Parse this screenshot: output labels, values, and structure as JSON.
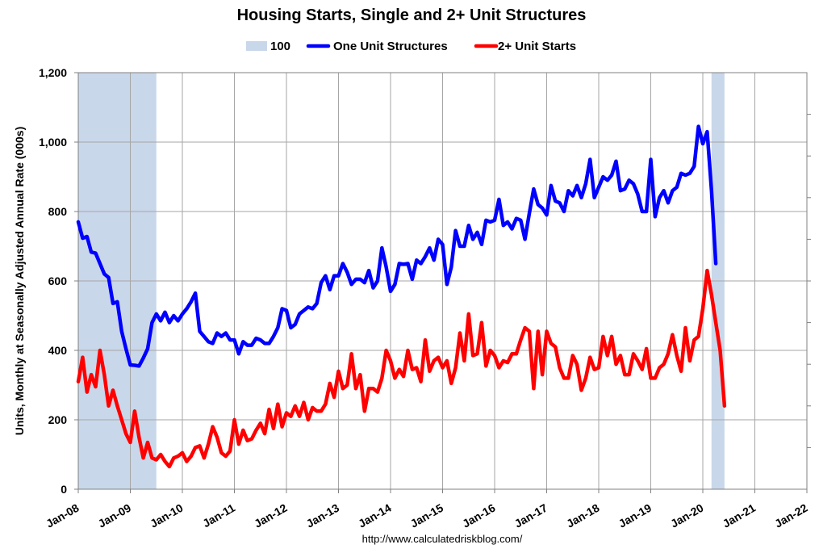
{
  "chart_data": {
    "type": "line",
    "title": "Housing Starts, Single and 2+ Unit Structures",
    "ylabel": "Units, Monthly at Seasonally Adjusted Annual Rate (000s)",
    "xlabel": "",
    "ylim": [
      0,
      1200
    ],
    "yticks": [
      {
        "value": 0,
        "label": "0"
      },
      {
        "value": 200,
        "label": "200"
      },
      {
        "value": 400,
        "label": "400"
      },
      {
        "value": 600,
        "label": "600"
      },
      {
        "value": 800,
        "label": "800"
      },
      {
        "value": 1000,
        "label": "1,000"
      },
      {
        "value": 1200,
        "label": "1,200"
      }
    ],
    "xlim": [
      "2008-01",
      "2022-01"
    ],
    "xticks": [
      "Jan-08",
      "Jan-09",
      "Jan-10",
      "Jan-11",
      "Jan-12",
      "Jan-13",
      "Jan-14",
      "Jan-15",
      "Jan-16",
      "Jan-17",
      "Jan-18",
      "Jan-19",
      "Jan-20",
      "Jan-21",
      "Jan-22"
    ],
    "grid": true,
    "legend_position": "top",
    "legend": [
      {
        "label": "100",
        "kind": "band",
        "color": "#c9d7ea"
      },
      {
        "label": "One Unit Structures",
        "kind": "line",
        "color": "#0000ff"
      },
      {
        "label": "2+ Unit Starts",
        "kind": "line",
        "color": "#ff0000"
      }
    ],
    "shaded_periods": [
      {
        "start": "2008-01",
        "end": "2009-06",
        "label": "100"
      },
      {
        "start": "2020-03",
        "end": "2020-05",
        "label": "100"
      }
    ],
    "series": [
      {
        "name": "One Unit Structures",
        "color": "#0000ff",
        "start": "2008-01",
        "values": [
          770,
          723,
          728,
          683,
          680,
          650,
          620,
          610,
          535,
          540,
          455,
          405,
          358,
          357,
          355,
          378,
          405,
          480,
          505,
          485,
          510,
          480,
          500,
          485,
          505,
          520,
          540,
          565,
          455,
          440,
          425,
          420,
          450,
          440,
          450,
          430,
          430,
          390,
          425,
          415,
          415,
          435,
          430,
          420,
          420,
          440,
          465,
          520,
          515,
          465,
          475,
          505,
          515,
          525,
          520,
          535,
          595,
          615,
          575,
          615,
          615,
          650,
          625,
          590,
          605,
          605,
          595,
          630,
          580,
          600,
          695,
          640,
          570,
          590,
          650,
          648,
          650,
          605,
          660,
          650,
          670,
          695,
          660,
          720,
          705,
          590,
          640,
          745,
          700,
          700,
          760,
          720,
          740,
          705,
          775,
          770,
          775,
          835,
          760,
          770,
          750,
          780,
          775,
          720,
          795,
          865,
          820,
          810,
          790,
          875,
          830,
          825,
          800,
          860,
          845,
          875,
          840,
          880,
          950,
          840,
          870,
          900,
          890,
          905,
          945,
          860,
          865,
          890,
          880,
          850,
          800,
          800,
          950,
          785,
          840,
          860,
          825,
          860,
          870,
          910,
          905,
          910,
          930,
          1045,
          995,
          1030,
          860,
          650
        ]
      },
      {
        "name": "2+ Unit Starts",
        "color": "#ff0000",
        "start": "2008-01",
        "values": [
          310,
          380,
          280,
          330,
          295,
          400,
          330,
          240,
          285,
          240,
          200,
          160,
          135,
          225,
          150,
          90,
          135,
          90,
          85,
          100,
          80,
          65,
          90,
          95,
          105,
          80,
          95,
          120,
          125,
          90,
          130,
          180,
          150,
          105,
          95,
          110,
          200,
          130,
          170,
          140,
          145,
          170,
          190,
          160,
          230,
          175,
          245,
          180,
          220,
          210,
          240,
          210,
          250,
          200,
          235,
          225,
          225,
          245,
          305,
          265,
          340,
          290,
          300,
          390,
          290,
          330,
          225,
          290,
          290,
          280,
          320,
          400,
          370,
          320,
          345,
          325,
          400,
          345,
          350,
          310,
          430,
          340,
          370,
          380,
          350,
          370,
          305,
          350,
          450,
          370,
          505,
          385,
          390,
          480,
          355,
          400,
          385,
          350,
          370,
          365,
          390,
          390,
          430,
          465,
          455,
          290,
          455,
          330,
          455,
          420,
          410,
          350,
          320,
          320,
          385,
          360,
          285,
          320,
          380,
          345,
          350,
          440,
          385,
          440,
          360,
          385,
          330,
          330,
          390,
          370,
          345,
          405,
          320,
          320,
          350,
          360,
          390,
          445,
          385,
          340,
          465,
          370,
          430,
          440,
          520,
          630,
          560,
          480,
          400,
          240
        ]
      }
    ],
    "source": "http://www.calculatedriskblog.com/"
  }
}
